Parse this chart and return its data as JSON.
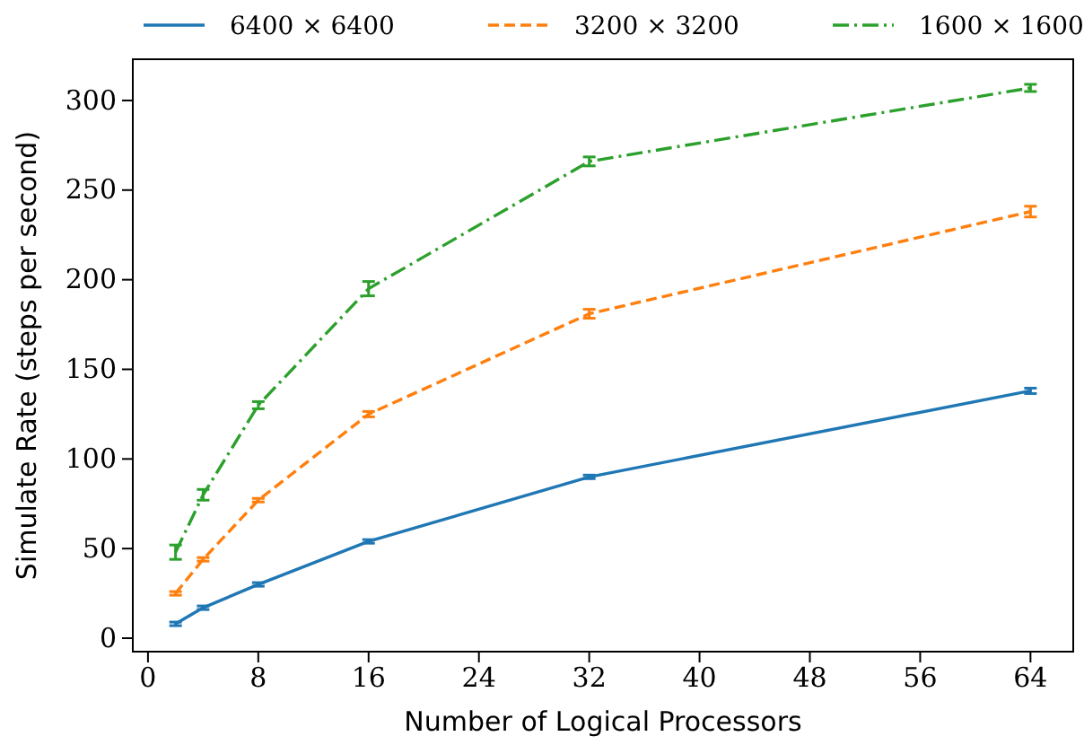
{
  "chart_data": {
    "type": "line",
    "xlabel": "Number of Logical Processors",
    "ylabel": "Simulate Rate (steps per second)",
    "x": [
      2,
      4,
      8,
      16,
      32,
      64
    ],
    "xlim": [
      -1.1,
      67.1
    ],
    "ylim": [
      -7.5,
      323
    ],
    "xticks": [
      0,
      8,
      16,
      24,
      32,
      40,
      48,
      56,
      64
    ],
    "yticks": [
      0,
      50,
      100,
      150,
      200,
      250,
      300
    ],
    "legend": "top",
    "grid": false,
    "marker": "none",
    "series": [
      {
        "name": "6400 × 6400",
        "color": "#1f77b4",
        "line_style": "solid",
        "values": [
          8,
          17,
          30,
          54,
          90,
          138
        ],
        "errors": [
          1,
          1,
          1,
          1,
          1,
          1.5
        ]
      },
      {
        "name": "3200 × 3200",
        "color": "#ff7f0e",
        "line_style": "dashed",
        "values": [
          25,
          44,
          77,
          125,
          181,
          238
        ],
        "errors": [
          1,
          1,
          1,
          1.5,
          2.5,
          3
        ]
      },
      {
        "name": "1600 × 1600",
        "color": "#2ca02c",
        "line_style": "dashdot",
        "values": [
          48,
          80,
          130,
          195,
          266,
          307
        ],
        "errors": [
          4,
          3,
          2,
          4,
          2.5,
          2
        ]
      }
    ]
  }
}
